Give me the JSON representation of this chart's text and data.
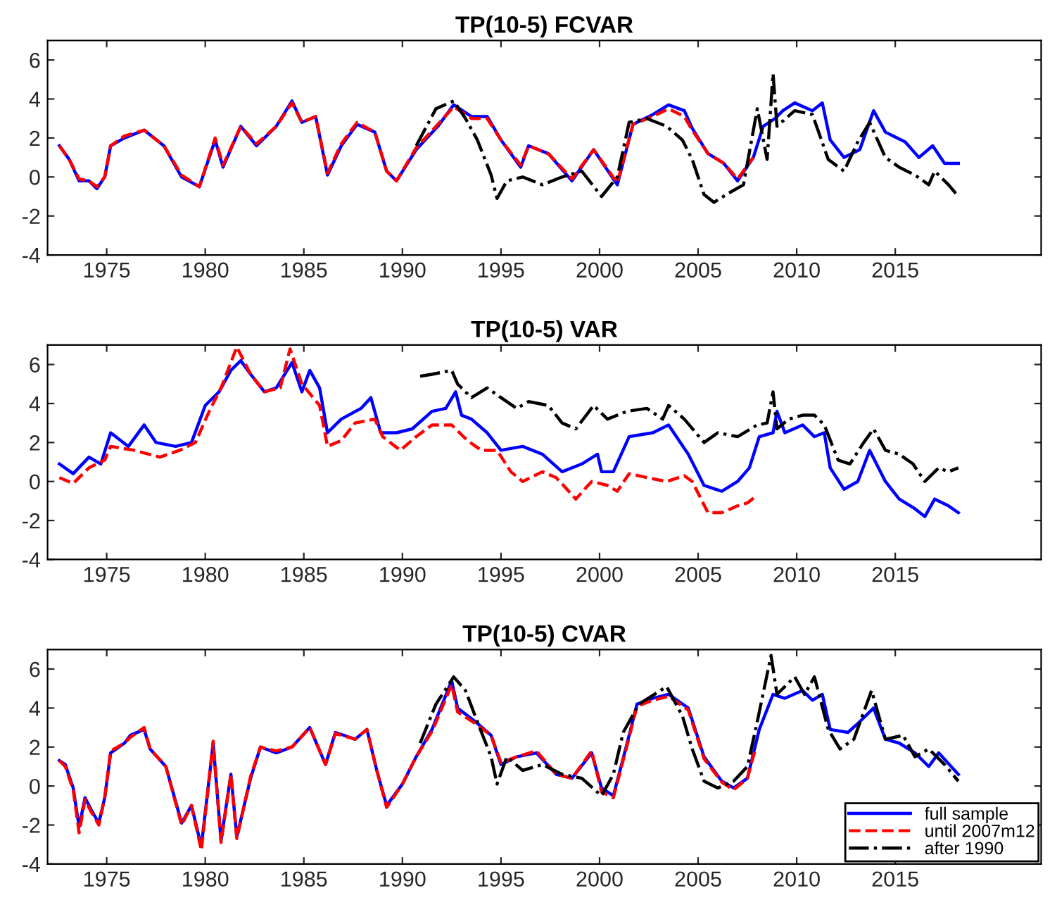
{
  "chart_data": [
    {
      "type": "line",
      "title": "TP(10-5) FCVAR",
      "xlim": [
        1972,
        2022.4
      ],
      "xticks": [
        1975,
        1980,
        1985,
        1990,
        1995,
        2000,
        2005,
        2010,
        2015
      ],
      "ylim": [
        -4,
        7
      ],
      "yticks": [
        -4,
        -2,
        0,
        2,
        4,
        6
      ],
      "grid": false,
      "legend": false,
      "series": [
        {
          "color": "#0000ff",
          "line_style": "solid",
          "x": [
            1972.6,
            1973.1,
            1973.6,
            1974.1,
            1974.5,
            1974.9,
            1975.2,
            1975.9,
            1976.9,
            1977.9,
            1978.8,
            1979.7,
            1980.5,
            1980.9,
            1981.8,
            1982.6,
            1983.6,
            1984.4,
            1984.9,
            1985.6,
            1986.2,
            1986.9,
            1987.7,
            1988.6,
            1989.2,
            1989.7,
            1990.7,
            1991.8,
            1992.6,
            1993.5,
            1994.3,
            1995.0,
            1996.0,
            1996.4,
            1997.4,
            1998.6,
            1999.7,
            2000.9,
            2001.7,
            2002.7,
            2003.5,
            2004.3,
            2004.7,
            2005.5,
            2006.3,
            2007.0,
            2007.8,
            2008.3,
            2008.9,
            2009.3,
            2009.9,
            2010.8,
            2011.3,
            2011.7,
            2012.4,
            2013.2,
            2013.9,
            2014.5,
            2015.5,
            2016.2,
            2016.9,
            2017.5,
            2018.2
          ],
          "values": [
            1.6,
            0.9,
            -0.2,
            -0.2,
            -0.6,
            0,
            1.6,
            2.0,
            2.4,
            1.6,
            0,
            -0.5,
            1.9,
            0.5,
            2.6,
            1.6,
            2.6,
            3.9,
            2.8,
            3.1,
            0.1,
            1.6,
            2.7,
            2.3,
            0.3,
            -0.2,
            1.4,
            2.6,
            3.7,
            3.1,
            3.1,
            1.9,
            0.5,
            1.6,
            1.2,
            -0.2,
            1.4,
            -0.4,
            2.7,
            3.2,
            3.7,
            3.4,
            2.5,
            1.2,
            0.7,
            -0.2,
            1.0,
            2.6,
            3.0,
            3.4,
            3.8,
            3.4,
            3.8,
            1.9,
            1.0,
            1.4,
            3.4,
            2.3,
            1.8,
            1.0,
            1.6,
            0.7,
            0.7
          ]
        },
        {
          "color": "#ff0000",
          "line_style": "dashed",
          "x": [
            1972.6,
            1973.1,
            1973.6,
            1974.1,
            1974.5,
            1974.9,
            1975.2,
            1975.9,
            1976.9,
            1977.9,
            1978.8,
            1979.7,
            1980.5,
            1980.9,
            1981.8,
            1982.6,
            1983.6,
            1984.4,
            1984.9,
            1985.6,
            1986.2,
            1986.9,
            1987.7,
            1988.6,
            1989.2,
            1989.7,
            1990.7,
            1991.8,
            1992.6,
            1993.5,
            1994.3,
            1995.0,
            1996.0,
            1996.4,
            1997.4,
            1998.6,
            1999.7,
            2000.9,
            2001.7,
            2002.7,
            2003.5,
            2004.3,
            2004.7,
            2005.5,
            2006.3,
            2007.0,
            2007.8
          ],
          "values": [
            1.6,
            0.9,
            -0.1,
            -0.2,
            -0.5,
            0,
            1.6,
            2.1,
            2.4,
            1.6,
            0.1,
            -0.5,
            2.0,
            0.6,
            2.6,
            1.7,
            2.6,
            3.8,
            2.8,
            3.1,
            0.2,
            1.7,
            2.8,
            2.3,
            0.3,
            -0.2,
            1.5,
            2.7,
            3.6,
            3.0,
            3.0,
            1.9,
            0.6,
            1.6,
            1.2,
            -0.1,
            1.4,
            -0.3,
            2.7,
            3.1,
            3.5,
            3.1,
            2.4,
            1.2,
            0.7,
            -0.1,
            1.0
          ]
        },
        {
          "color": "#000000",
          "line_style": "dashdot",
          "x": [
            1990.7,
            1991.7,
            1992.6,
            1993.2,
            1993.8,
            1994.5,
            1994.8,
            1995.3,
            1996.1,
            1997.1,
            1998.1,
            1999.1,
            2000.1,
            2000.9,
            2001.5,
            2002.4,
            2003.4,
            2004.2,
            2004.7,
            2005.3,
            2005.8,
            2006.6,
            2007.3,
            2008.0,
            2008.5,
            2008.8,
            2009.0,
            2009.9,
            2010.8,
            2011.6,
            2012.4,
            2013.1,
            2013.7,
            2014.5,
            2015.2,
            2016.0,
            2016.7,
            2017.0,
            2017.7,
            2018.2
          ],
          "values": [
            1.6,
            3.5,
            3.9,
            3.0,
            1.9,
            0.1,
            -1.1,
            -0.2,
            0,
            -0.4,
            0,
            0.3,
            -1.0,
            0,
            2.8,
            3.0,
            2.6,
            1.9,
            0.9,
            -0.9,
            -1.3,
            -0.8,
            -0.4,
            3.5,
            0.9,
            5.3,
            2.6,
            3.4,
            3.2,
            0.9,
            0.3,
            1.8,
            2.8,
            1.0,
            0.5,
            0.1,
            -0.4,
            0.3,
            -0.4,
            -1.0
          ]
        }
      ]
    },
    {
      "type": "line",
      "title": "TP(10-5) VAR",
      "xlim": [
        1972,
        2022.4
      ],
      "xticks": [
        1975,
        1980,
        1985,
        1990,
        1995,
        2000,
        2005,
        2010,
        2015
      ],
      "ylim": [
        -4,
        7
      ],
      "yticks": [
        -4,
        -2,
        0,
        2,
        4,
        6
      ],
      "grid": false,
      "legend": false,
      "series": [
        {
          "color": "#0000ff",
          "line_style": "solid",
          "x": [
            1972.6,
            1973.3,
            1974.1,
            1974.7,
            1975.2,
            1976.1,
            1976.9,
            1977.5,
            1978.5,
            1979.3,
            1980.0,
            1980.7,
            1981.3,
            1981.8,
            1982.3,
            1983.0,
            1983.6,
            1984.4,
            1984.9,
            1985.3,
            1985.8,
            1986.2,
            1986.9,
            1987.9,
            1988.4,
            1988.9,
            1989.7,
            1990.5,
            1991.5,
            1992.2,
            1992.7,
            1993.0,
            1993.5,
            1994.3,
            1995.0,
            1996.1,
            1997.1,
            1998.1,
            1999.1,
            1999.9,
            2000.1,
            2000.7,
            2001.5,
            2002.7,
            2003.5,
            2004.5,
            2005.3,
            2006.2,
            2007.0,
            2007.6,
            2008.1,
            2008.8,
            2009.0,
            2009.4,
            2010.3,
            2010.9,
            2011.4,
            2011.7,
            2012.4,
            2013.1,
            2013.7,
            2014.5,
            2015.2,
            2016.0,
            2016.5,
            2017.0,
            2017.7,
            2018.2
          ],
          "values": [
            0.9,
            0.4,
            1.25,
            0.9,
            2.5,
            1.8,
            2.9,
            2.0,
            1.8,
            2.0,
            3.9,
            4.6,
            5.7,
            6.2,
            5.5,
            4.6,
            4.8,
            6.1,
            4.6,
            5.7,
            4.8,
            2.5,
            3.2,
            3.75,
            4.3,
            2.5,
            2.5,
            2.7,
            3.6,
            3.75,
            4.6,
            3.4,
            3.2,
            2.5,
            1.6,
            1.8,
            1.4,
            0.5,
            0.9,
            1.4,
            0.5,
            0.5,
            2.3,
            2.5,
            2.9,
            1.4,
            -0.2,
            -0.5,
            0,
            0.7,
            2.3,
            2.5,
            3.6,
            2.5,
            2.9,
            2.3,
            2.5,
            0.7,
            -0.4,
            0,
            1.6,
            0,
            -0.9,
            -1.4,
            -1.8,
            -0.9,
            -1.25,
            -1.6
          ]
        },
        {
          "color": "#ff0000",
          "line_style": "dashed",
          "x": [
            1972.6,
            1973.3,
            1974.1,
            1974.9,
            1975.2,
            1976.4,
            1977.7,
            1978.7,
            1979.5,
            1980.2,
            1980.8,
            1981.6,
            1982.3,
            1983.0,
            1983.8,
            1984.3,
            1984.9,
            1985.8,
            1986.2,
            1986.9,
            1987.6,
            1988.6,
            1989.0,
            1989.9,
            1990.7,
            1991.5,
            1992.5,
            1993.3,
            1994.0,
            1994.8,
            1995.5,
            1996.1,
            1997.1,
            1997.8,
            1998.8,
            1999.6,
            2000.4,
            2000.9,
            2001.5,
            2002.4,
            2003.4,
            2004.3,
            2004.7,
            2005.5,
            2006.2,
            2007.0,
            2007.5,
            2008.0
          ],
          "values": [
            0.2,
            -0.1,
            0.7,
            1.1,
            1.8,
            1.6,
            1.25,
            1.6,
            2.0,
            3.6,
            4.8,
            6.9,
            5.5,
            4.6,
            4.8,
            6.8,
            5.0,
            3.9,
            1.8,
            2.1,
            3.0,
            3.2,
            2.3,
            1.6,
            2.3,
            2.9,
            2.9,
            2.1,
            1.6,
            1.6,
            0.5,
            0,
            0.5,
            0.2,
            -0.9,
            0,
            -0.2,
            -0.5,
            0.4,
            0.2,
            0,
            0.3,
            0,
            -1.6,
            -1.6,
            -1.25,
            -1.1,
            -0.7
          ]
        },
        {
          "color": "#000000",
          "line_style": "dashdot",
          "x": [
            1990.9,
            1991.5,
            1992.5,
            1992.8,
            1993.5,
            1994.3,
            1995.0,
            1995.8,
            1996.4,
            1997.4,
            1998.1,
            1998.8,
            1999.7,
            2000.4,
            2001.4,
            2002.4,
            2003.2,
            2003.5,
            2004.3,
            2005.3,
            2006.0,
            2007.0,
            2008.0,
            2008.5,
            2008.8,
            2009.0,
            2009.6,
            2010.3,
            2010.9,
            2011.4,
            2012.1,
            2012.7,
            2013.4,
            2013.9,
            2014.5,
            2015.2,
            2015.9,
            2016.5,
            2017.2,
            2017.7,
            2018.2
          ],
          "values": [
            5.4,
            5.5,
            5.7,
            5.0,
            4.3,
            4.8,
            4.3,
            3.75,
            4.1,
            3.9,
            3.0,
            2.7,
            3.9,
            3.2,
            3.6,
            3.75,
            3.2,
            3.9,
            3.2,
            2.0,
            2.5,
            2.3,
            2.9,
            3.0,
            4.6,
            2.7,
            3.2,
            3.4,
            3.4,
            2.9,
            1.1,
            0.9,
            2.0,
            2.7,
            1.6,
            1.4,
            0.9,
            0,
            0.7,
            0.5,
            0.7
          ]
        }
      ]
    },
    {
      "type": "line",
      "title": "TP(10-5) CVAR",
      "xlim": [
        1972,
        2022.4
      ],
      "xticks": [
        1975,
        1980,
        1985,
        1990,
        1995,
        2000,
        2005,
        2010,
        2015
      ],
      "ylim": [
        -4,
        7
      ],
      "yticks": [
        -4,
        -2,
        0,
        2,
        4,
        6
      ],
      "grid": false,
      "legend": "bottom right",
      "series": [
        {
          "name": "full sample",
          "color": "#0000ff",
          "line_style": "solid",
          "x": [
            1972.6,
            1972.9,
            1973.3,
            1973.6,
            1973.9,
            1974.2,
            1974.6,
            1974.9,
            1975.2,
            1975.9,
            1976.2,
            1976.9,
            1977.2,
            1978.0,
            1978.8,
            1979.3,
            1979.8,
            1980.2,
            1980.4,
            1980.8,
            1981.3,
            1981.6,
            1982.3,
            1982.8,
            1983.6,
            1984.4,
            1985.3,
            1986.1,
            1986.6,
            1987.6,
            1988.2,
            1988.7,
            1989.2,
            1990.0,
            1990.7,
            1991.5,
            1992.5,
            1992.8,
            1993.7,
            1994.5,
            1995.0,
            1995.8,
            1996.8,
            1997.8,
            1998.6,
            1999.6,
            2000.1,
            2000.7,
            2001.4,
            2001.9,
            2002.7,
            2003.5,
            2004.5,
            2005.3,
            2006.2,
            2006.8,
            2007.5,
            2008.1,
            2008.8,
            2009.4,
            2010.3,
            2010.8,
            2011.3,
            2011.7,
            2012.6,
            2013.2,
            2013.9,
            2014.5,
            2015.2,
            2016.0,
            2016.7,
            2017.2,
            2018.2
          ],
          "values": [
            1.3,
            1.1,
            -0.1,
            -2.1,
            -0.6,
            -1.2,
            -1.9,
            -0.6,
            1.7,
            2.2,
            2.6,
            2.9,
            1.9,
            1.0,
            -1.9,
            -1.0,
            -3.1,
            0.4,
            2.2,
            -2.8,
            0.6,
            -2.6,
            0.4,
            2.0,
            1.7,
            2.0,
            3.0,
            1.1,
            2.75,
            2.4,
            2.9,
            0.8,
            -1.0,
            0.1,
            1.5,
            2.9,
            5.4,
            4.0,
            3.3,
            2.6,
            1.1,
            1.5,
            1.7,
            0.6,
            0.4,
            1.7,
            -0.1,
            -0.5,
            2.2,
            4.2,
            4.5,
            4.7,
            4.0,
            1.5,
            0.25,
            -0.1,
            0.4,
            2.9,
            4.7,
            4.5,
            4.9,
            4.4,
            4.7,
            2.9,
            2.75,
            3.3,
            4.0,
            2.4,
            2.2,
            1.7,
            1.0,
            1.7,
            0.6
          ]
        },
        {
          "name": "until 2007m12",
          "color": "#ff0000",
          "line_style": "dashed",
          "x": [
            1972.6,
            1972.9,
            1973.3,
            1973.6,
            1973.9,
            1974.2,
            1974.6,
            1974.9,
            1975.2,
            1975.9,
            1976.2,
            1976.9,
            1977.2,
            1978.0,
            1978.8,
            1979.3,
            1979.8,
            1980.2,
            1980.4,
            1980.8,
            1981.3,
            1981.6,
            1982.3,
            1982.8,
            1983.6,
            1984.4,
            1985.3,
            1986.1,
            1986.6,
            1987.6,
            1988.2,
            1988.7,
            1989.2,
            1990.0,
            1990.7,
            1991.5,
            1992.5,
            1992.8,
            1993.7,
            1994.5,
            1995.0,
            1995.8,
            1996.8,
            1997.8,
            1998.6,
            1999.6,
            2000.1,
            2000.7,
            2001.4,
            2001.9,
            2002.7,
            2003.5,
            2004.5,
            2005.3,
            2006.2,
            2006.8,
            2007.5,
            2007.9
          ],
          "values": [
            1.3,
            1.0,
            -0.2,
            -2.4,
            -0.7,
            -1.3,
            -2.0,
            -0.6,
            1.8,
            2.2,
            2.5,
            3.0,
            1.9,
            1.0,
            -2.0,
            -1.0,
            -3.3,
            0.4,
            2.3,
            -2.9,
            0.6,
            -2.7,
            0.5,
            2.0,
            1.8,
            2.0,
            3.0,
            1.1,
            2.7,
            2.4,
            2.9,
            0.8,
            -1.1,
            0.1,
            1.5,
            2.8,
            5.2,
            3.8,
            3.2,
            2.6,
            1.2,
            1.5,
            1.8,
            0.6,
            0.4,
            1.8,
            -0.3,
            -0.6,
            2.1,
            4.1,
            4.4,
            4.6,
            3.9,
            1.4,
            0.2,
            -0.2,
            0.4,
            1.9
          ]
        },
        {
          "name": "after 1990",
          "color": "#000000",
          "line_style": "dashdot",
          "x": [
            1990.9,
            1991.7,
            1992.6,
            1993.2,
            1993.8,
            1994.5,
            1994.8,
            1995.3,
            1996.1,
            1997.1,
            1998.1,
            1999.1,
            2000.1,
            2000.7,
            2001.2,
            2002.0,
            2003.4,
            2004.2,
            2004.7,
            2005.3,
            2006.0,
            2006.8,
            2007.5,
            2008.0,
            2008.7,
            2009.0,
            2009.9,
            2010.4,
            2010.9,
            2011.6,
            2012.2,
            2012.9,
            2013.8,
            2014.5,
            2015.4,
            2016.0,
            2016.7,
            2017.5,
            2018.2
          ],
          "values": [
            2.2,
            4.2,
            5.6,
            4.9,
            3.3,
            1.5,
            0.1,
            1.5,
            0.8,
            1.1,
            0.6,
            0.4,
            -0.5,
            0.6,
            2.75,
            4.2,
            5.1,
            3.6,
            1.9,
            0.25,
            -0.1,
            0.25,
            1.0,
            3.3,
            6.7,
            4.7,
            5.6,
            4.7,
            5.6,
            2.9,
            1.9,
            2.4,
            4.9,
            2.4,
            2.6,
            1.5,
            1.9,
            1.1,
            0.25
          ]
        }
      ]
    }
  ]
}
